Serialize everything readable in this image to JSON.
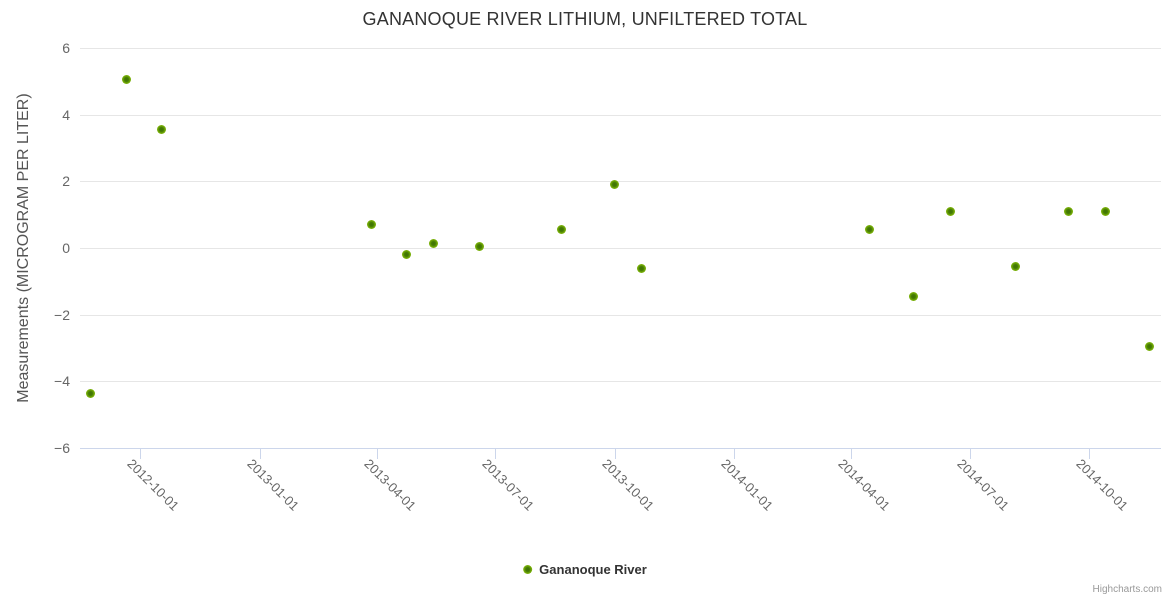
{
  "title": "GANANOQUE RIVER LITHIUM, UNFILTERED TOTAL",
  "credits": "Highcharts.com",
  "legend": {
    "items": [
      {
        "label": "Gananoque River",
        "color": "#7db300"
      }
    ]
  },
  "colors": {
    "marker": "#7db300",
    "marker_core": "#3f7203",
    "grid": "#e6e6e6",
    "axis": "#ccd6eb",
    "title_text": "#333333",
    "axis_label_text": "#666666",
    "credits_text": "#999999"
  },
  "chart_data": {
    "type": "scatter",
    "title": "GANANOQUE RIVER LITHIUM, UNFILTERED TOTAL",
    "xlabel": "",
    "ylabel": "Measurements (MICROGRAM PER LITER)",
    "ylim": [
      -6,
      6
    ],
    "ytick_interval": 2,
    "grid": true,
    "legend_position": "bottom-center",
    "x_type": "datetime",
    "x_range": [
      "2012-08-16",
      "2014-11-25"
    ],
    "x_ticks": [
      "2012-10-01",
      "2013-01-01",
      "2013-04-01",
      "2013-07-01",
      "2013-10-01",
      "2014-01-01",
      "2014-04-01",
      "2014-07-01",
      "2014-10-01"
    ],
    "series": [
      {
        "name": "Gananoque River",
        "color": "#7db300",
        "points": [
          {
            "date": "2012-08-24",
            "value": -4.35
          },
          {
            "date": "2012-09-21",
            "value": 5.05
          },
          {
            "date": "2012-10-18",
            "value": 3.55
          },
          {
            "date": "2013-03-28",
            "value": 0.7
          },
          {
            "date": "2013-04-24",
            "value": -0.2
          },
          {
            "date": "2013-05-15",
            "value": 0.15
          },
          {
            "date": "2013-06-19",
            "value": 0.05
          },
          {
            "date": "2013-08-21",
            "value": 0.55
          },
          {
            "date": "2013-10-01",
            "value": 1.9
          },
          {
            "date": "2013-10-22",
            "value": -0.6
          },
          {
            "date": "2014-04-15",
            "value": 0.55
          },
          {
            "date": "2014-05-19",
            "value": -1.45
          },
          {
            "date": "2014-06-16",
            "value": 1.1
          },
          {
            "date": "2014-08-05",
            "value": -0.55
          },
          {
            "date": "2014-09-15",
            "value": 1.1
          },
          {
            "date": "2014-10-13",
            "value": 1.1
          },
          {
            "date": "2014-11-16",
            "value": -2.95
          }
        ]
      }
    ]
  }
}
